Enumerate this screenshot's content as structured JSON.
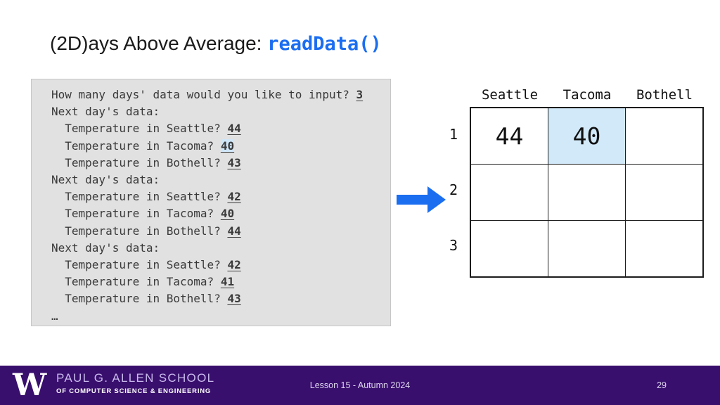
{
  "slide": {
    "title_plain": "(2D)ays Above Average: ",
    "title_code": "readData()"
  },
  "console_output": {
    "lines": [
      {
        "prompt": "How many days' data would you like to input? ",
        "input": "3",
        "highlight": false
      },
      {
        "prompt": "Next day's data:",
        "input": null,
        "highlight": false
      },
      {
        "prompt": "  Temperature in Seattle? ",
        "input": "44",
        "highlight": false
      },
      {
        "prompt": "  Temperature in Tacoma? ",
        "input": "40",
        "highlight": true
      },
      {
        "prompt": "  Temperature in Bothell? ",
        "input": "43",
        "highlight": false
      },
      {
        "prompt": "Next day's data:",
        "input": null,
        "highlight": false
      },
      {
        "prompt": "  Temperature in Seattle? ",
        "input": "42",
        "highlight": false
      },
      {
        "prompt": "  Temperature in Tacoma? ",
        "input": "40",
        "highlight": false
      },
      {
        "prompt": "  Temperature in Bothell? ",
        "input": "44",
        "highlight": false
      },
      {
        "prompt": "Next day's data:",
        "input": null,
        "highlight": false
      },
      {
        "prompt": "  Temperature in Seattle? ",
        "input": "42",
        "highlight": false
      },
      {
        "prompt": "  Temperature in Tacoma? ",
        "input": "41",
        "highlight": false
      },
      {
        "prompt": "  Temperature in Bothell? ",
        "input": "43",
        "highlight": false
      },
      {
        "prompt": "…",
        "input": null,
        "highlight": false
      }
    ]
  },
  "temperature_grid": {
    "column_headers": [
      "Seattle",
      "Tacoma",
      "Bothell"
    ],
    "row_labels": [
      "1",
      "2",
      "3"
    ],
    "rows": [
      [
        "44",
        "40",
        ""
      ],
      [
        "",
        "",
        ""
      ],
      [
        "",
        "",
        ""
      ]
    ],
    "highlighted_cell": {
      "row": 0,
      "col": 1
    }
  },
  "arrow": {
    "direction": "right",
    "color": "#1b6ef0"
  },
  "footer": {
    "logo_letter": "W",
    "school_name_line1": "PAUL G. ALLEN SCHOOL",
    "school_name_line2": "OF COMPUTER SCIENCE & ENGINEERING",
    "lesson_label": "Lesson 15 - Autumn 2024",
    "page_number": "29"
  },
  "colors": {
    "accent_blue": "#1b6ef0",
    "console_background": "#e1e1e1",
    "highlight_blue": "#d2e9f9",
    "footer_purple": "#390f6e"
  }
}
